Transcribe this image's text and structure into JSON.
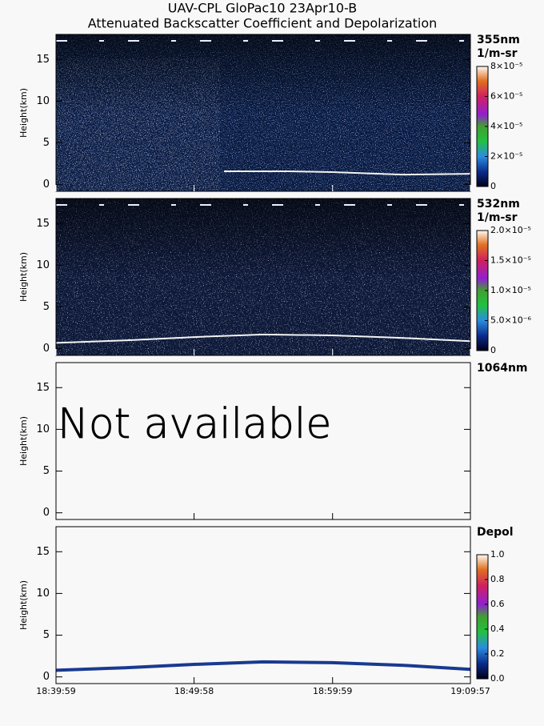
{
  "title": "UAV-CPL GloPac10 23Apr10-B",
  "subtitle": "Attenuated Backscatter Coefficient and Depolarization",
  "chart_data": [
    {
      "type": "curtain",
      "label": "355nm",
      "unit": "1/m-sr",
      "ylabel": "Height(km)",
      "ylim": [
        -0.8,
        18
      ],
      "yticks": [
        0,
        5,
        10,
        15
      ],
      "xlim": [
        0,
        1798
      ],
      "clim": [
        0,
        8e-05
      ],
      "cticks": [
        0,
        {
          "value": 2e-05,
          "label": "2×10⁻⁵"
        },
        {
          "value": 4e-05,
          "label": "4×10⁻⁵"
        },
        {
          "value": 6e-05,
          "label": "6×10⁻⁵"
        },
        {
          "value": 8e-05,
          "label": "8×10⁻⁵"
        }
      ],
      "x": [
        729,
        1000,
        1200,
        1500,
        1798
      ],
      "values": [
        1.6,
        1.6,
        1.5,
        1.2,
        1.3
      ]
    },
    {
      "type": "curtain",
      "label": "532nm",
      "unit": "1/m-sr",
      "ylabel": "Height(km)",
      "ylim": [
        -0.8,
        18
      ],
      "yticks": [
        0,
        5,
        10,
        15
      ],
      "xlim": [
        0,
        1798
      ],
      "clim": [
        0,
        2e-05
      ],
      "cticks": [
        0,
        {
          "value": 5e-06,
          "label": "5.0×10⁻⁶"
        },
        {
          "value": 1e-05,
          "label": "1.0×10⁻⁵"
        },
        {
          "value": 1.5e-05,
          "label": "1.5×10⁻⁵"
        },
        {
          "value": 2e-05,
          "label": "2.0×10⁻⁵"
        }
      ],
      "x": [
        0,
        300,
        600,
        900,
        1200,
        1500,
        1798
      ],
      "values": [
        0.7,
        1.0,
        1.4,
        1.7,
        1.6,
        1.3,
        0.9
      ]
    },
    {
      "type": "empty",
      "label": "1064nm",
      "ylabel": "Height(km)",
      "note": "Not available",
      "ylim": [
        -0.8,
        18
      ],
      "yticks": [
        0,
        5,
        10,
        15
      ]
    },
    {
      "type": "curtain",
      "label": "Depol",
      "ylabel": "Height(km)",
      "ylim": [
        -0.8,
        18
      ],
      "yticks": [
        0,
        5,
        10,
        15
      ],
      "xlim": [
        0,
        1798
      ],
      "xticks": [
        {
          "value": 0,
          "label": "18:39:59"
        },
        {
          "value": 599,
          "label": "18:49:58"
        },
        {
          "value": 1200,
          "label": "18:59:59"
        },
        {
          "value": 1798,
          "label": "19:09:57"
        }
      ],
      "clim": [
        0,
        1
      ],
      "cticks": [
        {
          "value": 0,
          "label": "0.0"
        },
        0.2,
        0.4,
        0.6,
        0.8,
        {
          "value": 1,
          "label": "1.0"
        }
      ],
      "x": [
        0,
        300,
        600,
        900,
        1200,
        1500,
        1798
      ],
      "values": [
        0.8,
        1.1,
        1.5,
        1.8,
        1.7,
        1.4,
        0.9
      ]
    }
  ]
}
